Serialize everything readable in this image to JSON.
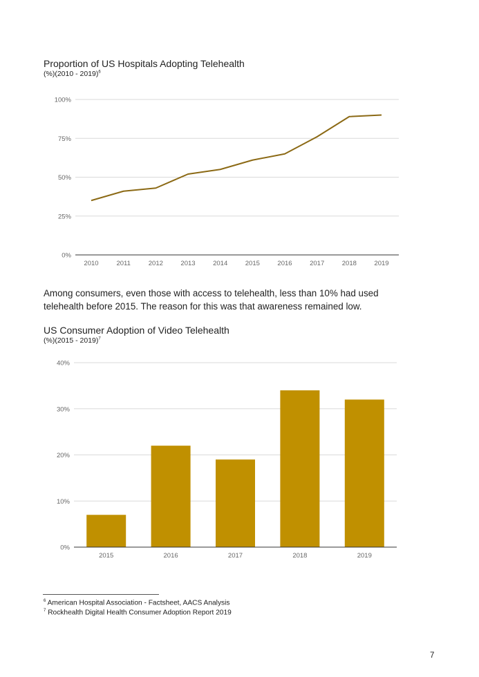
{
  "chart1": {
    "title": "Proportion of US Hospitals Adopting Telehealth",
    "subtitle": "(%)(2010 - 2019)",
    "subtitle_ref": "6"
  },
  "paragraph": "Among consumers, even those with access to telehealth, less than 10% had used telehealth before 2015. The reason for this was that awareness remained low.",
  "chart2": {
    "title": "US Consumer Adoption of Video Telehealth",
    "subtitle": "(%)(2015 - 2019)",
    "subtitle_ref": "7"
  },
  "footnotes": [
    {
      "ref": "6",
      "text": "American Hospital Association - Factsheet, AACS Analysis"
    },
    {
      "ref": "7",
      "text": "Rockhealth Digital Health Consumer Adoption Report 2019"
    }
  ],
  "page_number": "7",
  "colors": {
    "line": "#8b6914",
    "bar": "#c09000",
    "grid": "#d9d9d9",
    "axis": "#333333",
    "tick_text": "#666666"
  },
  "chart_data": [
    {
      "type": "line",
      "title": "Proportion of US Hospitals Adopting Telehealth",
      "subtitle": "(%)(2010 - 2019)",
      "categories": [
        "2010",
        "2011",
        "2012",
        "2013",
        "2014",
        "2015",
        "2016",
        "2017",
        "2018",
        "2019"
      ],
      "series": [
        {
          "name": "Hospitals adopting telehealth",
          "values": [
            35,
            41,
            43,
            52,
            55,
            61,
            65,
            76,
            89,
            90
          ]
        }
      ],
      "xlabel": "",
      "ylabel": "",
      "ylim": [
        0,
        100
      ],
      "yticks": [
        0,
        25,
        50,
        75,
        100
      ],
      "ytick_labels": [
        "0%",
        "25%",
        "50%",
        "75%",
        "100%"
      ],
      "grid": true
    },
    {
      "type": "bar",
      "title": "US Consumer Adoption of Video Telehealth",
      "subtitle": "(%)(2015 - 2019)",
      "categories": [
        "2015",
        "2016",
        "2017",
        "2018",
        "2019"
      ],
      "values": [
        7,
        22,
        19,
        34,
        32
      ],
      "xlabel": "",
      "ylabel": "",
      "ylim": [
        0,
        40
      ],
      "yticks": [
        0,
        10,
        20,
        30,
        40
      ],
      "ytick_labels": [
        "0%",
        "10%",
        "20%",
        "30%",
        "40%"
      ],
      "grid": true
    }
  ]
}
